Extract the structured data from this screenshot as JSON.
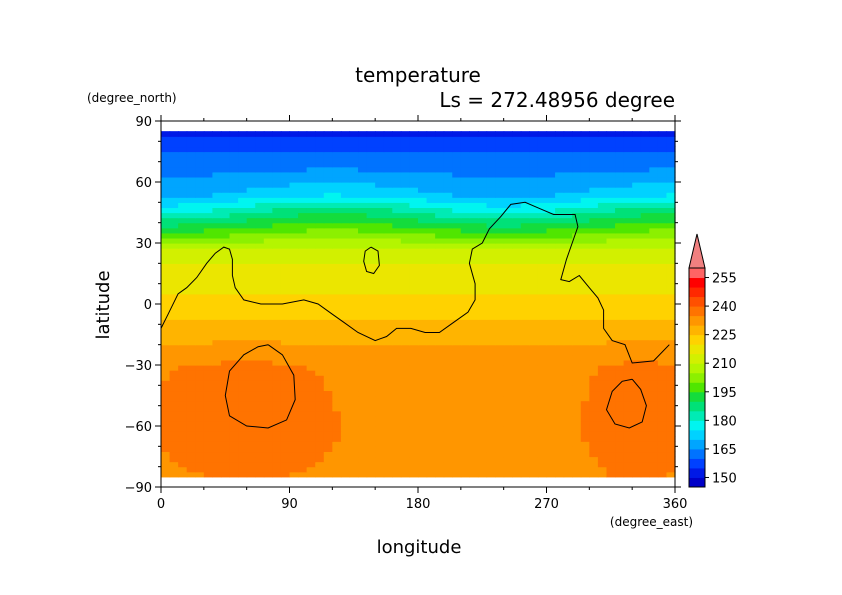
{
  "chart_data": {
    "type": "heatmap",
    "title": "temperature",
    "subtitle": "Ls = 272.48956 degree",
    "xlabel": "longitude",
    "ylabel": "latitude",
    "x_units": "(degree_east)",
    "y_units": "(degree_north)",
    "xlim": [
      0,
      360
    ],
    "ylim": [
      -90,
      90
    ],
    "x_ticks": [
      0,
      90,
      180,
      270,
      360
    ],
    "x_tick_labels": [
      "0",
      "90",
      "180",
      "270",
      "360"
    ],
    "y_ticks": [
      90,
      60,
      30,
      0,
      -30,
      -60,
      -90
    ],
    "y_tick_labels": [
      "90",
      "60",
      "30",
      "0",
      "−30",
      "−60",
      "−90"
    ],
    "data_lat_range": [
      -85,
      85
    ],
    "colorbar": {
      "levels": [
        145,
        150,
        155,
        160,
        165,
        170,
        175,
        180,
        185,
        190,
        195,
        200,
        205,
        210,
        215,
        220,
        225,
        230,
        235,
        240,
        245,
        250,
        255,
        260
      ],
      "tick_labels": [
        "150",
        "165",
        "180",
        "195",
        "210",
        "225",
        "240",
        "255"
      ],
      "colors": [
        "#0000c8",
        "#0019e6",
        "#0041ff",
        "#0073ff",
        "#00a5ff",
        "#00d2ff",
        "#00f5f0",
        "#00ebb4",
        "#00e178",
        "#14dc3c",
        "#50e600",
        "#8cf000",
        "#b4f500",
        "#d2f000",
        "#ebe600",
        "#ffd200",
        "#ffb400",
        "#ff9600",
        "#ff7300",
        "#ff5000",
        "#ff2800",
        "#ff0000",
        "#ff6464"
      ],
      "extend": "max"
    },
    "grid": false,
    "contour_lines": [
      {
        "name": "coastline-west",
        "points": [
          [
            0,
            -12
          ],
          [
            5,
            -5
          ],
          [
            12,
            5
          ],
          [
            18,
            8
          ],
          [
            25,
            13
          ],
          [
            32,
            20
          ],
          [
            38,
            25
          ],
          [
            44,
            28
          ],
          [
            48,
            27
          ],
          [
            50,
            22
          ],
          [
            50,
            14
          ],
          [
            52,
            8
          ],
          [
            58,
            2
          ],
          [
            70,
            0
          ],
          [
            85,
            0
          ],
          [
            100,
            2
          ],
          [
            110,
            0
          ],
          [
            120,
            -5
          ],
          [
            128,
            -9
          ],
          [
            138,
            -14
          ],
          [
            150,
            -18
          ],
          [
            158,
            -16
          ],
          [
            165,
            -12
          ],
          [
            175,
            -12
          ],
          [
            185,
            -14
          ],
          [
            195,
            -14
          ],
          [
            205,
            -9
          ],
          [
            215,
            -4
          ],
          [
            220,
            2
          ],
          [
            220,
            10
          ],
          [
            216,
            20
          ],
          [
            218,
            27
          ],
          [
            225,
            30
          ],
          [
            230,
            37
          ],
          [
            238,
            43
          ],
          [
            245,
            49
          ],
          [
            255,
            50
          ],
          [
            265,
            47
          ],
          [
            275,
            44
          ],
          [
            290,
            44
          ],
          [
            292,
            38
          ],
          [
            288,
            30
          ],
          [
            284,
            22
          ],
          [
            280,
            12
          ],
          [
            286,
            11
          ],
          [
            293,
            14
          ],
          [
            300,
            8
          ],
          [
            306,
            3
          ],
          [
            310,
            -3
          ],
          [
            310,
            -12
          ],
          [
            316,
            -18
          ],
          [
            325,
            -20
          ],
          [
            330,
            -29
          ],
          [
            345,
            -28
          ],
          [
            356,
            -20
          ]
        ]
      },
      {
        "name": "crater-west",
        "points": [
          [
            75,
            -20
          ],
          [
            85,
            -25
          ],
          [
            93,
            -35
          ],
          [
            94,
            -47
          ],
          [
            88,
            -57
          ],
          [
            75,
            -61
          ],
          [
            60,
            -60
          ],
          [
            48,
            -55
          ],
          [
            45,
            -45
          ],
          [
            48,
            -33
          ],
          [
            58,
            -25
          ],
          [
            68,
            -21
          ],
          [
            75,
            -20
          ]
        ]
      },
      {
        "name": "crater-east",
        "points": [
          [
            330,
            -37
          ],
          [
            336,
            -42
          ],
          [
            340,
            -50
          ],
          [
            337,
            -58
          ],
          [
            328,
            -61
          ],
          [
            318,
            -59
          ],
          [
            312,
            -52
          ],
          [
            316,
            -43
          ],
          [
            323,
            -38
          ],
          [
            330,
            -37
          ]
        ]
      },
      {
        "name": "island",
        "points": [
          [
            147,
            28
          ],
          [
            152,
            26
          ],
          [
            153,
            19
          ],
          [
            149,
            15
          ],
          [
            144,
            16
          ],
          [
            142,
            21
          ],
          [
            143,
            26
          ],
          [
            147,
            28
          ]
        ]
      }
    ]
  }
}
